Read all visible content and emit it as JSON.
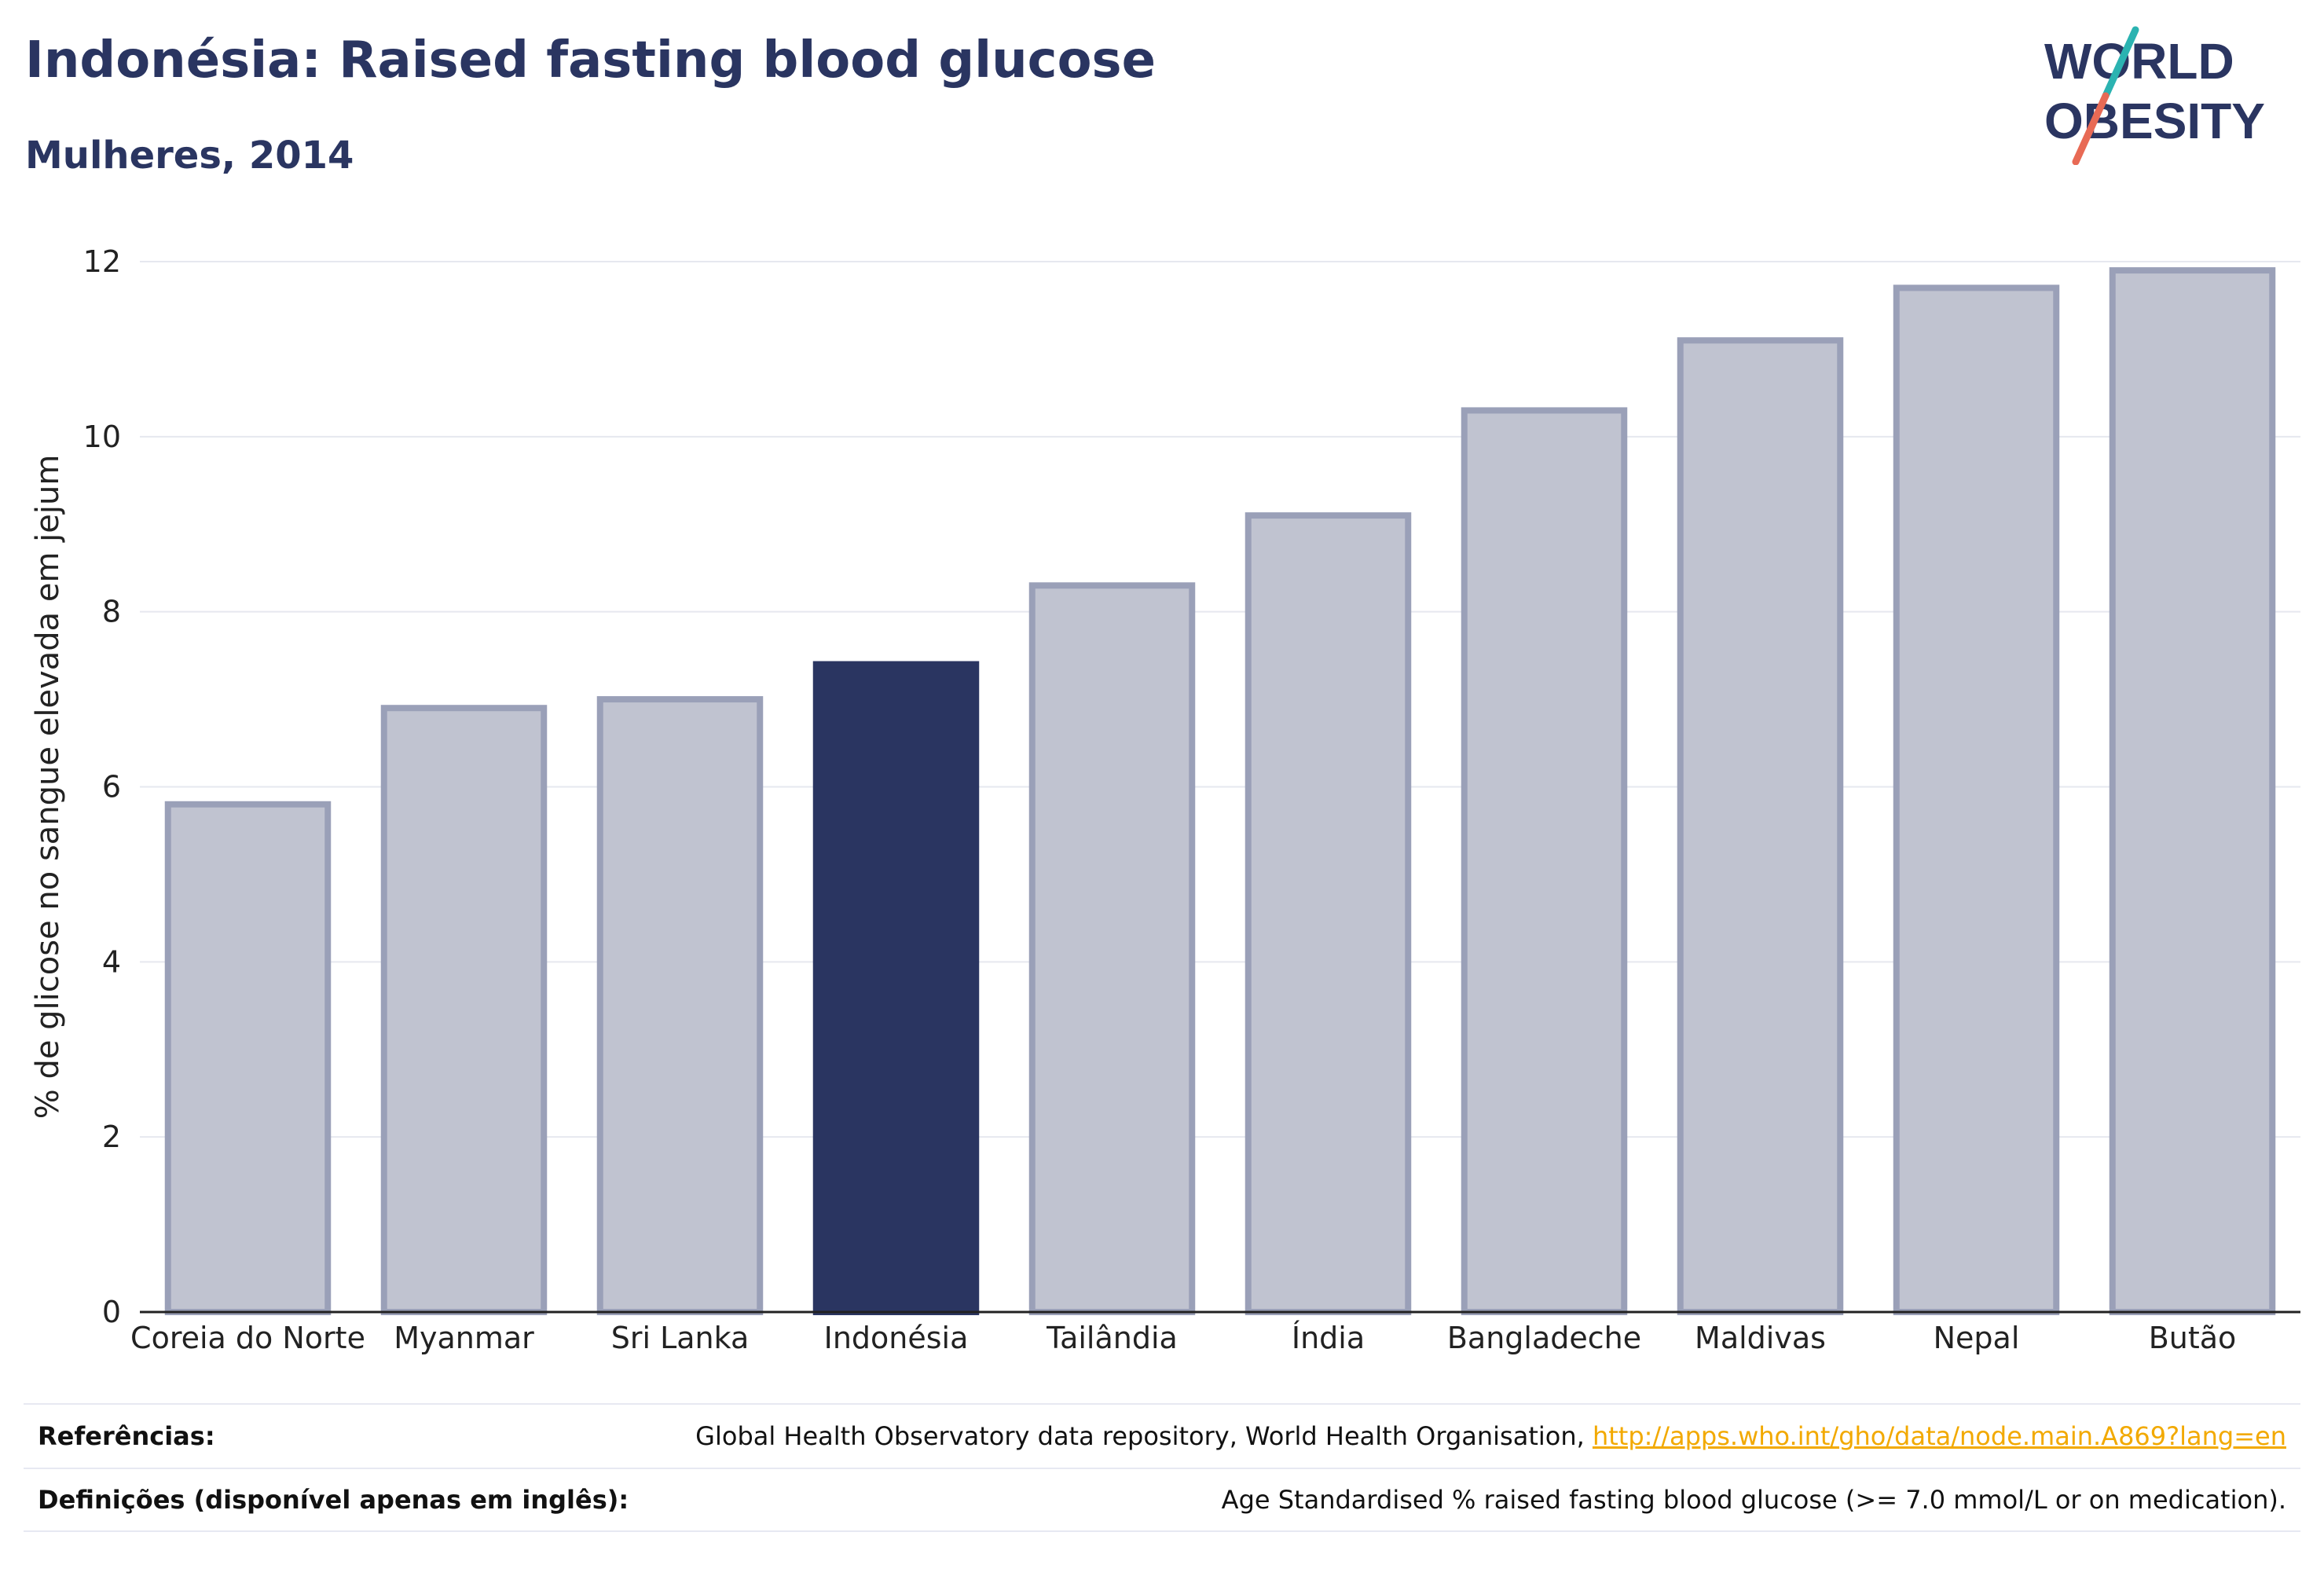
{
  "header": {
    "title": "Indonésia: Raised fasting blood glucose",
    "subtitle": "Mulheres, 2014"
  },
  "logo": {
    "line1": "WORLD",
    "line2": "OBESITY",
    "colors": {
      "text": "#2a3561",
      "slash_top": "#2bb3b1",
      "slash_bottom": "#e86a55"
    }
  },
  "chart_data": {
    "type": "bar",
    "title": "",
    "xlabel": "",
    "ylabel": "% de glicose no sangue elevada em jejum",
    "categories": [
      "Coreia do Norte",
      "Myanmar",
      "Sri Lanka",
      "Indonésia",
      "Tailândia",
      "Índia",
      "Bangladeche",
      "Maldivas",
      "Nepal",
      "Butão"
    ],
    "values": [
      5.8,
      6.9,
      7.0,
      7.4,
      8.3,
      9.1,
      10.3,
      11.1,
      11.7,
      11.9
    ],
    "highlight": "Indonésia",
    "ylim": [
      0,
      12
    ],
    "yticks": [
      0,
      2,
      4,
      6,
      8,
      10,
      12
    ],
    "grid": true,
    "colors": {
      "bar": "#c0c3d0",
      "bar_outline": "#9aa0b8",
      "highlight": "#2a3561",
      "grid": "#e6e8ef",
      "axis": "#222222",
      "text": "#222222"
    }
  },
  "footer": {
    "references_label": "Referências:",
    "references_text": "Global Health Observatory data repository, World Health Organisation,",
    "references_link": "http://apps.who.int/gho/data/node.main.A869?lang=en",
    "definitions_label": "Definições (disponível apenas em inglês):",
    "definitions_text": "Age Standardised % raised fasting blood glucose (>= 7.0 mmol/L or on medication)."
  }
}
